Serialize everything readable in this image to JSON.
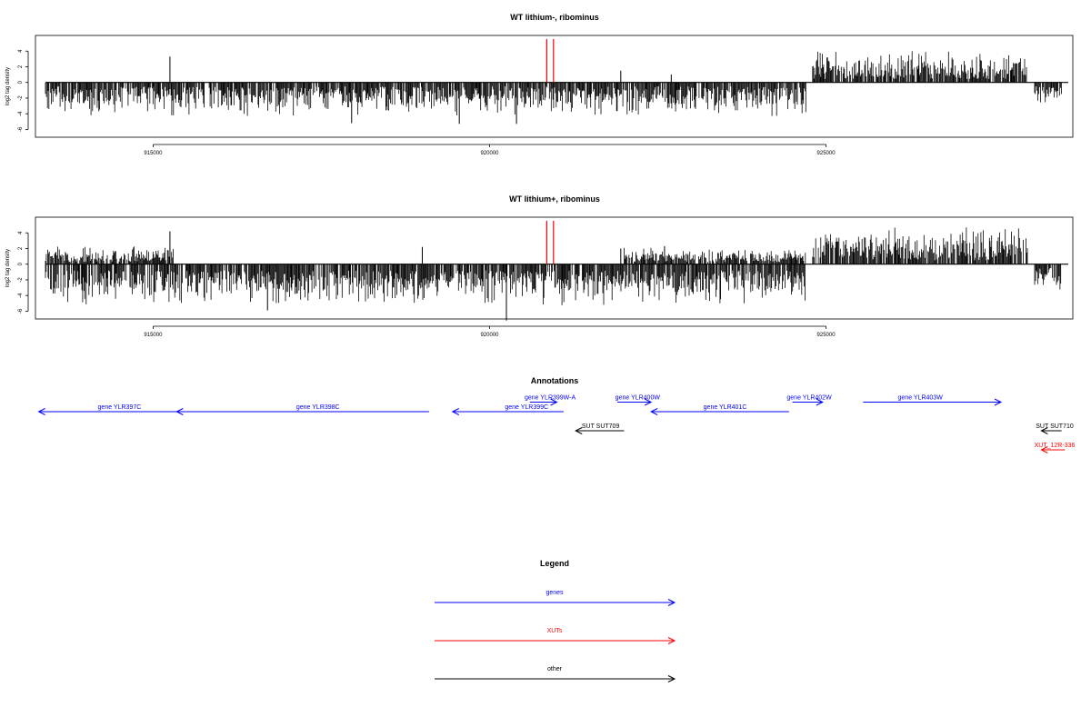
{
  "colors": {
    "genes": "#0000ff",
    "xuts": "#ff0000",
    "other": "#000000",
    "marker": "#ff0000",
    "bars": "#000000"
  },
  "chart_data": [
    {
      "type": "bar",
      "title": "WT lithium-, ribominus",
      "ylabel": "log2 tag density",
      "xlim": [
        913400,
        928600
      ],
      "ylim": [
        -7,
        6
      ],
      "x_ticks": [
        915000,
        920000,
        925000
      ],
      "y_ticks": [
        -6,
        -4,
        -2,
        0,
        2,
        4
      ],
      "marker_positions": [
        920850,
        920950
      ],
      "coverage": [
        {
          "x_start": 913400,
          "x_end": 924700,
          "sign": -1,
          "min": 0.5,
          "max": 4.5
        },
        {
          "x_start": 924800,
          "x_end": 928000,
          "sign": 1,
          "min": 0.4,
          "max": 4.4
        },
        {
          "x_start": 928100,
          "x_end": 928500,
          "sign": -1,
          "min": 0.5,
          "max": 3.6
        }
      ],
      "spikes": [
        [
          915250,
          3.3
        ],
        [
          921950,
          1.5
        ],
        [
          922700,
          1.0
        ],
        [
          919550,
          -5.3
        ],
        [
          917950,
          -5.2
        ],
        [
          920400,
          -5.3
        ]
      ]
    },
    {
      "type": "bar",
      "title": "WT lithium+, ribominus",
      "ylabel": "log2 tag density",
      "xlim": [
        913400,
        928600
      ],
      "ylim": [
        -7,
        6
      ],
      "x_ticks": [
        915000,
        920000,
        925000
      ],
      "y_ticks": [
        -6,
        -4,
        -2,
        0,
        2,
        4
      ],
      "marker_positions": [
        920850,
        920950
      ],
      "coverage": [
        {
          "x_start": 913400,
          "x_end": 924700,
          "sign": -1,
          "min": 0.8,
          "max": 5.5
        },
        {
          "x_start": 913400,
          "x_end": 915300,
          "sign": 1,
          "min": 0.3,
          "max": 2.5
        },
        {
          "x_start": 922000,
          "x_end": 924700,
          "sign": 1,
          "min": 0.3,
          "max": 2.2
        },
        {
          "x_start": 924800,
          "x_end": 928000,
          "sign": 1,
          "min": 0.5,
          "max": 5.2
        },
        {
          "x_start": 928100,
          "x_end": 928500,
          "sign": -1,
          "min": 0.5,
          "max": 3.8
        }
      ],
      "spikes": [
        [
          915250,
          4.2
        ],
        [
          919000,
          2.2
        ],
        [
          921950,
          2.0
        ],
        [
          922600,
          2.3
        ],
        [
          920250,
          -7.2
        ],
        [
          916700,
          -5.9
        ],
        [
          928200,
          -1.3
        ]
      ]
    }
  ],
  "annotations": {
    "title": "Annotations",
    "features": [
      {
        "label": "gene YLR397C",
        "type": "genes",
        "start": 913300,
        "end": 915350,
        "strand": "-",
        "row": 2,
        "label_pos": 914500
      },
      {
        "label": "gene YLR398C",
        "type": "genes",
        "start": 915350,
        "end": 919100,
        "strand": "-",
        "row": 2,
        "label_pos": 917450
      },
      {
        "label": "gene YLR399C",
        "type": "genes",
        "start": 919450,
        "end": 921100,
        "strand": "-",
        "row": 2,
        "label_pos": 920550
      },
      {
        "label": "gene YLR399W-A",
        "type": "genes",
        "start": 920600,
        "end": 921000,
        "strand": "+",
        "row": 1,
        "label_pos": 920900
      },
      {
        "label": "gene YLR400W",
        "type": "genes",
        "start": 921900,
        "end": 922400,
        "strand": "+",
        "row": 1,
        "label_pos": 922200
      },
      {
        "label": "gene YLR401C",
        "type": "genes",
        "start": 922400,
        "end": 924450,
        "strand": "-",
        "row": 2,
        "label_pos": 923500
      },
      {
        "label": "gene YLR402W",
        "type": "genes",
        "start": 924500,
        "end": 924950,
        "strand": "+",
        "row": 1,
        "label_pos": 924750
      },
      {
        "label": "gene YLR403W",
        "type": "genes",
        "start": 925550,
        "end": 927600,
        "strand": "+",
        "row": 1,
        "label_pos": 926400
      },
      {
        "label": "SUT SUT709",
        "type": "other",
        "start": 921280,
        "end": 922000,
        "strand": "-",
        "row": 4,
        "label_pos": 921650
      },
      {
        "label": "SUT SUT710",
        "type": "other",
        "start": 928200,
        "end": 928500,
        "strand": "-",
        "row": 4,
        "label_pos": 928550
      },
      {
        "label": "XUT_12R-336",
        "type": "xuts",
        "start": 928200,
        "end": 928550,
        "strand": "-",
        "row": 6,
        "label_pos": 928570
      }
    ]
  },
  "legend": {
    "title": "Legend",
    "items": [
      {
        "label": "genes",
        "type": "genes"
      },
      {
        "label": "XUTs",
        "type": "xuts"
      },
      {
        "label": "other",
        "type": "other"
      }
    ]
  }
}
